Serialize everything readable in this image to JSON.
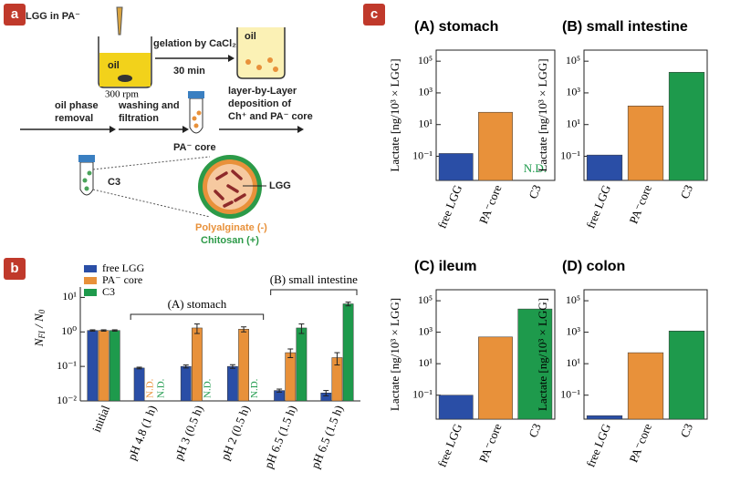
{
  "panels": [
    "a",
    "b",
    "c"
  ],
  "diagram": {
    "texts": [
      "LGG in PA⁻",
      "oil",
      "300 rpm",
      "gelation by CaCl₂",
      "30 min",
      "oil",
      "oil phase",
      "removal",
      "washing and",
      "filtration",
      "PA⁻ core",
      "layer-by-Layer",
      "deposition of",
      "Ch⁺ and PA⁻ core",
      "C3",
      "LGG",
      "Polyalginate (-)",
      "Chitosan (+)"
    ]
  },
  "chart_data": [
    {
      "type": "bar",
      "log_scale": true,
      "legend": "upper left",
      "ylabel": {
        "main": "N",
        "sub": "FI",
        "sep": " / N",
        "sub2": "0"
      },
      "categories": [
        "initial",
        "pH 4.8 (1 h)",
        "pH 3 (0.5 h)",
        "pH 2 (0.5 h)",
        "pH 6.5 (1.5 h)",
        "pH 6.5 (1.5 h)"
      ],
      "group_labels": [
        "(A) stomach",
        "(B) small intestine"
      ],
      "series": [
        {
          "name": "free LGG",
          "color": "#2a4ea6",
          "values": [
            1.1,
            0.09,
            0.1,
            0.1,
            0.02,
            0.017
          ],
          "errors": [
            0.05,
            0.005,
            0.01,
            0.012,
            0.002,
            0.003
          ]
        },
        {
          "name": "PA⁻ core",
          "color": "#e8913a",
          "values": [
            1.1,
            null,
            1.3,
            1.2,
            0.25,
            0.18
          ],
          "errors": [
            0.05,
            null,
            0.4,
            0.2,
            0.07,
            0.07
          ],
          "value_labels": [
            null,
            "N.D.",
            null,
            null,
            null,
            null
          ]
        },
        {
          "name": "C3",
          "color": "#1e9a4c",
          "values": [
            1.1,
            null,
            null,
            null,
            1.3,
            6.5
          ],
          "errors": [
            0.05,
            null,
            null,
            null,
            0.4,
            0.8
          ],
          "value_labels": [
            null,
            "N.D.",
            "N.D.",
            "N.D.",
            null,
            null
          ]
        }
      ],
      "ylim": [
        0.01,
        20
      ],
      "yticks": [
        {
          "value": 0.01,
          "label": "10⁻²"
        },
        {
          "value": 0.1,
          "label": "10⁻¹"
        },
        {
          "value": 1,
          "label": "10⁰"
        },
        {
          "value": 10,
          "label": "10¹"
        }
      ]
    },
    {
      "type": "bar",
      "log_scale": true,
      "title": "(A) stomach",
      "ylabel": "Lactate [ng/10³ × LGG]",
      "categories": [
        "free LGG",
        "PA⁻core",
        "C3"
      ],
      "values": [
        0.15,
        60,
        null
      ],
      "value_labels": [
        null,
        null,
        "N.D."
      ],
      "colors": [
        "#2a4ea6",
        "#e8913a",
        "#1e9a4c"
      ],
      "ylim": [
        0.003,
        500000
      ],
      "yticks": [
        {
          "value": 0.1,
          "label": "10⁻¹"
        },
        {
          "value": 10,
          "label": "10¹"
        },
        {
          "value": 1000,
          "label": "10³"
        },
        {
          "value": 100000,
          "label": "10⁵"
        }
      ]
    },
    {
      "type": "bar",
      "log_scale": true,
      "title": "(B) small intestine",
      "ylabel": "Lactate [ng/10³ × LGG]",
      "categories": [
        "free LGG",
        "PA⁻core",
        "C3"
      ],
      "values": [
        0.12,
        150,
        20000
      ],
      "colors": [
        "#2a4ea6",
        "#e8913a",
        "#1e9a4c"
      ],
      "ylim": [
        0.003,
        500000
      ],
      "yticks": [
        {
          "value": 0.1,
          "label": "10⁻¹"
        },
        {
          "value": 10,
          "label": "10¹"
        },
        {
          "value": 1000,
          "label": "10³"
        },
        {
          "value": 100000,
          "label": "10⁵"
        }
      ]
    },
    {
      "type": "bar",
      "log_scale": true,
      "title": "(C) ileum",
      "ylabel": "Lactate [ng/10³ × LGG]",
      "categories": [
        "free LGG",
        "PA⁻core",
        "C3"
      ],
      "values": [
        0.1,
        500,
        30000
      ],
      "colors": [
        "#2a4ea6",
        "#e8913a",
        "#1e9a4c"
      ],
      "ylim": [
        0.003,
        500000
      ],
      "yticks": [
        {
          "value": 0.1,
          "label": "10⁻¹"
        },
        {
          "value": 10,
          "label": "10¹"
        },
        {
          "value": 1000,
          "label": "10³"
        },
        {
          "value": 100000,
          "label": "10⁵"
        }
      ]
    },
    {
      "type": "bar",
      "log_scale": true,
      "title": "(D) colon",
      "ylabel": "Lactate [ng/10³ × LGG]",
      "categories": [
        "free LGG",
        "PA⁻core",
        "C3"
      ],
      "values": [
        0.005,
        50,
        1200
      ],
      "colors": [
        "#2a4ea6",
        "#e8913a",
        "#1e9a4c"
      ],
      "ylim": [
        0.003,
        500000
      ],
      "yticks": [
        {
          "value": 0.1,
          "label": "10⁻¹"
        },
        {
          "value": 10,
          "label": "10¹"
        },
        {
          "value": 1000,
          "label": "10³"
        },
        {
          "value": 100000,
          "label": "10⁵"
        }
      ]
    }
  ]
}
